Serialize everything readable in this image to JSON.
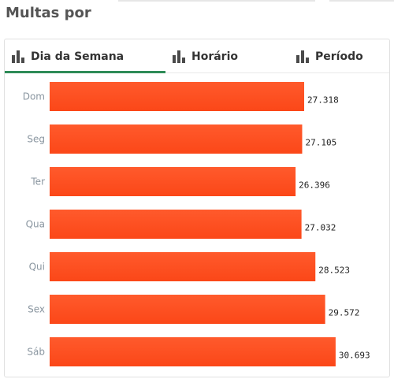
{
  "page": {
    "title": "Multas por"
  },
  "tabs": [
    {
      "label": "Dia da Semana",
      "icon": "bar-chart-icon",
      "active": true
    },
    {
      "label": "Horário",
      "icon": "bar-chart-icon",
      "active": false
    },
    {
      "label": "Período",
      "icon": "bar-chart-icon",
      "active": false
    }
  ],
  "colors": {
    "bar_top": "#ff5a2c",
    "bar_bottom": "#fb4718",
    "active_tab": "#2e8b57"
  },
  "chart_data": {
    "type": "bar",
    "orientation": "horizontal",
    "categories": [
      "Dom",
      "Seg",
      "Ter",
      "Qua",
      "Qui",
      "Sex",
      "Sáb"
    ],
    "values": [
      27318,
      27105,
      26396,
      27032,
      28523,
      29572,
      30693
    ],
    "value_labels": [
      "27.318",
      "27.105",
      "26.396",
      "27.032",
      "28.523",
      "29.572",
      "30.693"
    ],
    "xlim": [
      0,
      34000
    ],
    "grid": false,
    "legend": "none"
  }
}
